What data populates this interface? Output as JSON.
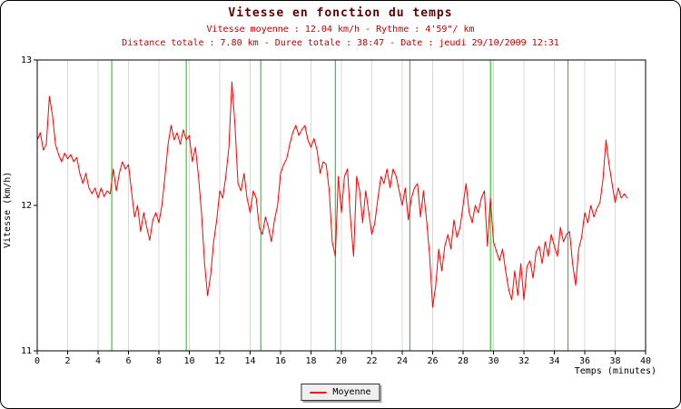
{
  "page": {
    "title": "Vitesse en fonction du temps",
    "subtitle1": "Vitesse moyenne : 12.04 km/h - Rythme : 4'59\"/ km",
    "subtitle2": "Distance totale : 7.80 km - Duree totale : 38:47 - Date : jeudi 29/10/2009 12:31"
  },
  "stats": {
    "vitesse_moyenne_kmh": 12.04,
    "rythme_par_km": "4'59\"",
    "distance_totale_km": 7.8,
    "duree_totale": "38:47",
    "date": "jeudi 29/10/2009 12:31"
  },
  "legend": {
    "series_label": "Moyenne"
  },
  "colors": {
    "line": "#ff0000",
    "km_marker": "#00cc00",
    "grid": "#d8d8d8",
    "axis": "#000000",
    "title": "#600000",
    "subtitle": "#c00000",
    "legend_bg": "#efefef"
  },
  "chart_data": {
    "type": "line",
    "title": "Vitesse en fonction du temps",
    "xlabel": "Temps (minutes)",
    "ylabel": "Vitesse (km/h)",
    "xlim": [
      0,
      40
    ],
    "ylim": [
      11,
      13
    ],
    "x_ticks": [
      0,
      2,
      4,
      6,
      8,
      10,
      12,
      14,
      16,
      18,
      20,
      22,
      24,
      26,
      28,
      30,
      32,
      34,
      36,
      38,
      40
    ],
    "y_ticks": [
      11,
      12,
      13
    ],
    "grid": "vertical",
    "legend_position": "bottom-center",
    "km_markers_x": [
      4.9,
      9.8,
      14.7,
      19.6,
      24.5,
      29.8,
      34.9
    ],
    "series": [
      {
        "name": "Moyenne",
        "color": "#ff0000",
        "x": [
          0,
          0.2,
          0.4,
          0.6,
          0.8,
          1,
          1.2,
          1.4,
          1.6,
          1.8,
          2,
          2.2,
          2.4,
          2.6,
          2.8,
          3,
          3.2,
          3.4,
          3.6,
          3.8,
          4,
          4.2,
          4.4,
          4.6,
          4.8,
          5,
          5.2,
          5.4,
          5.6,
          5.8,
          6,
          6.2,
          6.4,
          6.6,
          6.8,
          7,
          7.2,
          7.4,
          7.6,
          7.8,
          8,
          8.2,
          8.4,
          8.6,
          8.8,
          9,
          9.2,
          9.4,
          9.6,
          9.8,
          10,
          10.2,
          10.4,
          10.6,
          10.8,
          11,
          11.2,
          11.4,
          11.6,
          11.8,
          12,
          12.2,
          12.4,
          12.6,
          12.8,
          13,
          13.2,
          13.4,
          13.6,
          13.8,
          14,
          14.2,
          14.4,
          14.6,
          14.8,
          15,
          15.2,
          15.4,
          15.6,
          15.8,
          16,
          16.2,
          16.4,
          16.6,
          16.8,
          17,
          17.2,
          17.4,
          17.6,
          17.8,
          18,
          18.2,
          18.4,
          18.6,
          18.8,
          19,
          19.2,
          19.4,
          19.6,
          19.8,
          20,
          20.2,
          20.4,
          20.6,
          20.8,
          21,
          21.2,
          21.4,
          21.6,
          21.8,
          22,
          22.2,
          22.4,
          22.6,
          22.8,
          23,
          23.2,
          23.4,
          23.6,
          23.8,
          24,
          24.2,
          24.4,
          24.6,
          24.8,
          25,
          25.2,
          25.4,
          25.6,
          25.8,
          26,
          26.2,
          26.4,
          26.6,
          26.8,
          27,
          27.2,
          27.4,
          27.6,
          27.8,
          28,
          28.2,
          28.4,
          28.6,
          28.8,
          29,
          29.2,
          29.4,
          29.6,
          29.8,
          30,
          30.2,
          30.4,
          30.6,
          30.8,
          31,
          31.2,
          31.4,
          31.6,
          31.8,
          32,
          32.2,
          32.4,
          32.6,
          32.8,
          33,
          33.2,
          33.4,
          33.6,
          33.8,
          34,
          34.2,
          34.4,
          34.6,
          34.8,
          35,
          35.2,
          35.4,
          35.6,
          35.8,
          36,
          36.2,
          36.4,
          36.6,
          36.8,
          37,
          37.2,
          37.4,
          37.6,
          37.8,
          38,
          38.2,
          38.4,
          38.6,
          38.8
        ],
        "y": [
          12.45,
          12.5,
          12.38,
          12.42,
          12.75,
          12.62,
          12.42,
          12.35,
          12.3,
          12.36,
          12.32,
          12.35,
          12.3,
          12.33,
          12.22,
          12.15,
          12.22,
          12.12,
          12.08,
          12.12,
          12.05,
          12.12,
          12.06,
          12.1,
          12.08,
          12.25,
          12.1,
          12.22,
          12.3,
          12.25,
          12.28,
          12.1,
          11.92,
          12.0,
          11.82,
          11.95,
          11.85,
          11.76,
          11.9,
          11.95,
          11.88,
          12.0,
          12.2,
          12.42,
          12.55,
          12.45,
          12.5,
          12.42,
          12.52,
          12.45,
          12.48,
          12.3,
          12.4,
          12.2,
          11.95,
          11.6,
          11.38,
          11.52,
          11.75,
          11.9,
          12.1,
          12.05,
          12.2,
          12.4,
          12.85,
          12.55,
          12.15,
          12.1,
          12.22,
          12.05,
          11.95,
          12.1,
          12.05,
          11.85,
          11.8,
          11.92,
          11.85,
          11.75,
          11.9,
          12.0,
          12.22,
          12.28,
          12.32,
          12.42,
          12.5,
          12.55,
          12.48,
          12.52,
          12.55,
          12.45,
          12.4,
          12.46,
          12.38,
          12.22,
          12.3,
          12.28,
          12.1,
          11.75,
          11.65,
          12.2,
          11.95,
          12.2,
          12.25,
          11.9,
          11.65,
          12.2,
          12.1,
          11.88,
          12.1,
          11.95,
          11.8,
          11.88,
          12.05,
          12.2,
          12.15,
          12.25,
          12.12,
          12.25,
          12.2,
          12.1,
          12.0,
          12.12,
          11.9,
          12.05,
          12.12,
          12.15,
          11.92,
          12.1,
          11.9,
          11.65,
          11.3,
          11.45,
          11.7,
          11.55,
          11.72,
          11.8,
          11.7,
          11.9,
          11.78,
          11.85,
          12.0,
          12.15,
          11.95,
          11.88,
          12.0,
          11.95,
          12.05,
          12.1,
          11.72,
          12.05,
          11.75,
          11.68,
          11.62,
          11.7,
          11.55,
          11.42,
          11.35,
          11.55,
          11.38,
          11.6,
          11.35,
          11.58,
          11.62,
          11.5,
          11.68,
          11.72,
          11.6,
          11.75,
          11.65,
          11.8,
          11.72,
          11.65,
          11.85,
          11.75,
          11.8,
          11.82,
          11.6,
          11.45,
          11.7,
          11.78,
          11.95,
          11.88,
          12.0,
          11.92,
          11.98,
          12.02,
          12.18,
          12.45,
          12.28,
          12.15,
          12.02,
          12.12,
          12.05,
          12.08,
          12.05
        ]
      }
    ]
  }
}
